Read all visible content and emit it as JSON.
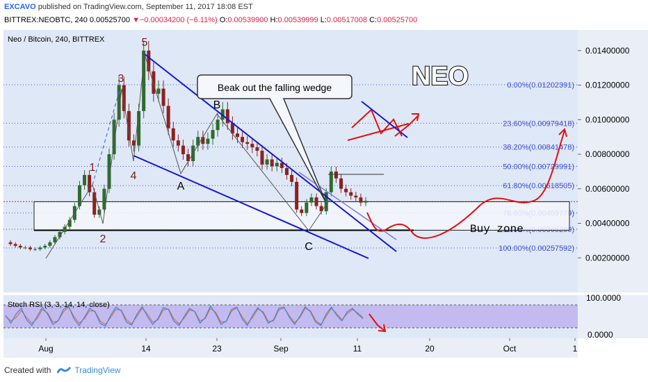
{
  "header": {
    "author": "EXCAVO",
    "published_text": "published on TradingView.com, September 11, 2017 18:08 EST",
    "symbol_line": "BITTREX:NEOBTC, 240",
    "last": "0.00525700",
    "change_arrow": "▼",
    "change": "−0.00034200 (−6.11%)",
    "o_label": "O:",
    "o": "0.00539900",
    "h_label": "H:",
    "h": "0.00539999",
    "l_label": "L:",
    "l": "0.00517008",
    "c_label": "C:",
    "c": "0.00525700"
  },
  "colors": {
    "panel_bg": "#dfe8f6",
    "axis_bg": "#e9eef7",
    "candle_up": "#2e6b2e",
    "candle_down": "#8b2222",
    "wedge": "#1414d8",
    "projection": "#e01010",
    "fib": "#3f4fcf",
    "buy_zone": "#f4f6fb",
    "stoch_band": "#b7a6ee",
    "stoch_k": "#3a87d8",
    "stoch_d": "#d8743a"
  },
  "chart_data": {
    "type": "candlestick",
    "title": "Neo / Bitcoin, 240, BITTREX",
    "big_label": "NEO",
    "annotation": "Beak out the falling wedge",
    "buy_zone_label": "Buy zone",
    "wave_labels": [
      "1",
      "2",
      "3",
      "4",
      "5",
      "A",
      "B",
      "C"
    ],
    "y_axis_ticks": [
      "0.01400000",
      "0.01200000",
      "0.01000000",
      "0.00800000",
      "0.00600000",
      "0.00400000",
      "0.00200000"
    ],
    "y_range": [
      0.0,
      0.0152
    ],
    "x_axis_ticks": [
      "Aug",
      "14",
      "23",
      "Sep",
      "11",
      "20",
      "Oct",
      "1"
    ],
    "fib_levels": [
      {
        "label": "0.00%(0.01202391)",
        "value": 0.01202391
      },
      {
        "label": "23.60%(0.00979418)",
        "value": 0.00979418
      },
      {
        "label": "38.20%(0.00841478)",
        "value": 0.00841478
      },
      {
        "label": "50.00%(0.00729991)",
        "value": 0.00729991
      },
      {
        "label": "61.80%(0.00618505)",
        "value": 0.00618505
      },
      {
        "label": "78.60%(0.00459779)",
        "value": 0.00459779
      },
      {
        "label": "88.60%(0.00365299)",
        "value": 0.00365299
      },
      {
        "label": "100.00%(0.00257592)",
        "value": 0.00257592
      }
    ],
    "current_price": 0.005257,
    "price_path": [
      [
        0.0029,
        0.0028,
        0.0027,
        0.0026,
        0.0026,
        0.0025,
        0.0025,
        0.0026,
        0.0027,
        0.0029,
        0.0032,
        0.0035,
        0.0038,
        0.0042,
        0.005,
        0.0062,
        0.0068,
        0.0058,
        0.0045,
        0.0048,
        0.006,
        0.008,
        0.01,
        0.012,
        0.0105,
        0.0088,
        0.0085,
        0.0105,
        0.014,
        0.0128,
        0.0115,
        0.0118,
        0.0108,
        0.0095,
        0.0088,
        0.0085,
        0.008,
        0.0076,
        0.0085,
        0.009,
        0.0086,
        0.0089,
        0.0094,
        0.01,
        0.0106,
        0.0098,
        0.0092,
        0.009,
        0.0087,
        0.0086,
        0.0084,
        0.0082,
        0.0074,
        0.0077,
        0.0073,
        0.0075,
        0.0072,
        0.0068,
        0.0064,
        0.0048,
        0.0046,
        0.0052,
        0.0055,
        0.005,
        0.0047,
        0.0058,
        0.007,
        0.0066,
        0.006,
        0.0058,
        0.0056,
        0.0055,
        0.0052,
        0.0053
      ]
    ],
    "stoch_rsi": {
      "label": "Stoch RSI (3, 3, 14, 14, close)",
      "upper_label": "100.0000",
      "lower_label": "0.0000",
      "k": [
        55,
        20,
        60,
        85,
        35,
        10,
        50,
        90,
        60,
        15,
        30,
        80,
        95,
        40,
        10,
        45,
        85,
        70,
        20,
        8,
        55,
        90,
        75,
        25,
        12,
        60,
        92,
        50,
        15,
        40,
        88,
        80,
        30,
        10,
        50,
        85,
        70,
        20,
        45,
        95,
        60,
        15,
        30,
        80,
        90,
        40,
        10,
        55,
        88,
        65,
        20,
        35,
        85,
        90,
        45,
        15,
        50,
        92,
        70,
        25,
        10,
        60,
        90,
        55,
        30,
        70,
        85,
        60,
        40
      ],
      "d": [
        50,
        30,
        45,
        75,
        45,
        20,
        40,
        80,
        65,
        25,
        30,
        70,
        90,
        50,
        20,
        40,
        75,
        72,
        30,
        15,
        45,
        80,
        78,
        35,
        18,
        50,
        85,
        60,
        25,
        35,
        78,
        82,
        40,
        18,
        42,
        78,
        72,
        30,
        40,
        85,
        68,
        25,
        28,
        72,
        88,
        50,
        18,
        45,
        82,
        70,
        28,
        30,
        78,
        88,
        52,
        22,
        45,
        85,
        75,
        32,
        15,
        50,
        85,
        62,
        35,
        62,
        80,
        65,
        45
      ]
    }
  },
  "footer": {
    "created_with": "Created with",
    "brand": "TradingView"
  }
}
